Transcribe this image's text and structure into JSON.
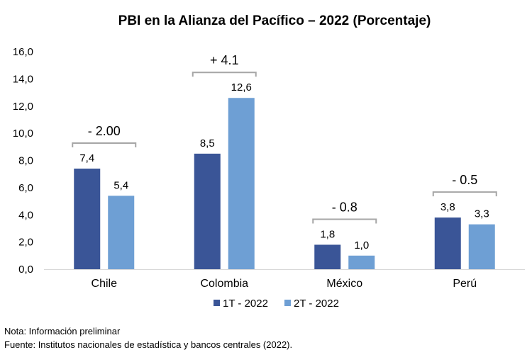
{
  "chart_data": {
    "type": "bar",
    "title": "PBI en la Alianza del Pacífico – 2022 (Porcentaje)",
    "categories": [
      "Chile",
      "Colombia",
      "México",
      "Perú"
    ],
    "series": [
      {
        "name": "1T - 2022",
        "values": [
          7.4,
          8.5,
          1.8,
          3.8
        ],
        "labels": [
          "7,4",
          "8,5",
          "1,8",
          "3,8"
        ],
        "color": "#3A5597"
      },
      {
        "name": "2T - 2022",
        "values": [
          5.4,
          12.6,
          1.0,
          3.3
        ],
        "labels": [
          "5,4",
          "12,6",
          "1,0",
          "3,3"
        ],
        "color": "#6E9FD4"
      }
    ],
    "annotations": [
      "- 2.00",
      "+ 4.1",
      "- 0.8",
      "- 0.5"
    ],
    "ylim": [
      0,
      16
    ],
    "yticks": [
      0,
      2,
      4,
      6,
      8,
      10,
      12,
      14,
      16
    ],
    "ytick_labels": [
      "0,0",
      "2,0",
      "4,0",
      "6,0",
      "8,0",
      "10,0",
      "12,0",
      "14,0",
      "16,0"
    ],
    "xlabel": "",
    "ylabel": "",
    "legend": "bottom-center"
  },
  "notes": {
    "nota": "Nota: Información preliminar",
    "fuente": "Fuente: Institutos nacionales de estadística y bancos centrales (2022)."
  },
  "colors": {
    "axis": "#D9D9D9",
    "bracket": "#A6A6A6"
  }
}
